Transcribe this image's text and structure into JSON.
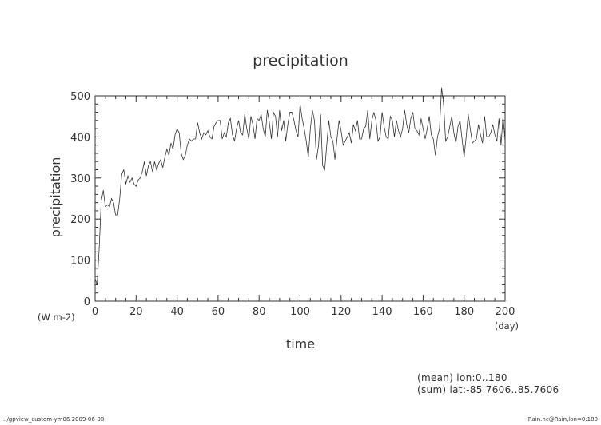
{
  "chart_data": {
    "type": "line",
    "title": "precipitation",
    "xlabel": "time",
    "ylabel": "precipitation",
    "x_unit": "(day)",
    "y_unit": "(W m-2)",
    "xlim": [
      0,
      200
    ],
    "ylim": [
      0,
      500
    ],
    "x_ticks": [
      0,
      20,
      40,
      60,
      80,
      100,
      120,
      140,
      160,
      180,
      200
    ],
    "y_ticks": [
      0,
      100,
      200,
      300,
      400,
      500
    ],
    "grid": false,
    "series": [
      {
        "values": [
          55,
          40,
          130,
          245,
          270,
          230,
          235,
          230,
          250,
          240,
          210,
          210,
          250,
          310,
          320,
          285,
          305,
          290,
          300,
          285,
          280,
          295,
          300,
          315,
          340,
          305,
          330,
          340,
          315,
          340,
          320,
          335,
          345,
          325,
          350,
          370,
          355,
          385,
          370,
          405,
          420,
          410,
          360,
          345,
          355,
          380,
          395,
          390,
          395,
          395,
          435,
          410,
          395,
          410,
          405,
          415,
          400,
          395,
          425,
          435,
          440,
          440,
          395,
          410,
          400,
          435,
          445,
          405,
          390,
          420,
          440,
          410,
          405,
          455,
          420,
          395,
          450,
          430,
          395,
          445,
          440,
          455,
          420,
          400,
          465,
          435,
          395,
          460,
          450,
          400,
          465,
          415,
          440,
          390,
          430,
          460,
          460,
          440,
          415,
          400,
          480,
          445,
          420,
          390,
          350,
          420,
          465,
          440,
          345,
          380,
          455,
          330,
          320,
          380,
          440,
          400,
          390,
          345,
          395,
          440,
          415,
          380,
          390,
          400,
          410,
          385,
          430,
          415,
          440,
          395,
          395,
          420,
          425,
          465,
          395,
          440,
          460,
          440,
          390,
          400,
          460,
          425,
          400,
          395,
          450,
          440,
          400,
          440,
          415,
          400,
          420,
          465,
          430,
          410,
          445,
          460,
          420,
          415,
          405,
          445,
          420,
          395,
          420,
          450,
          405,
          395,
          355,
          400,
          420,
          520,
          480,
          390,
          400,
          425,
          450,
          410,
          385,
          425,
          440,
          395,
          350,
          400,
          455,
          420,
          385,
          390,
          395,
          430,
          405,
          385,
          450,
          400,
          400,
          410,
          430,
          405,
          390,
          445,
          380,
          450,
          390
        ]
      }
    ]
  },
  "footer": {
    "left": "../gpview_custom-ym06  2009-06-08",
    "right": "Rain.nc@Rain,lon=0:180"
  },
  "notes": {
    "mean": "(mean) lon:0..180",
    "sum": "(sum) lat:-85.7606..85.7606"
  }
}
